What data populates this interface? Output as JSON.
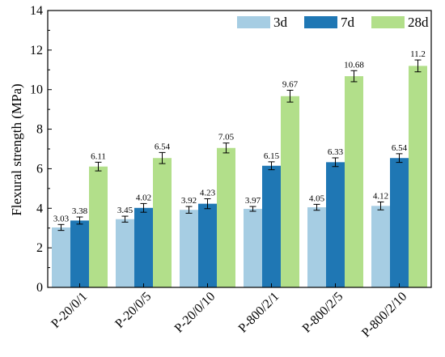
{
  "chart_data": {
    "type": "bar",
    "ylabel": "Flexural strength (MPa)",
    "xlabel": "",
    "ylim": [
      0,
      14
    ],
    "yticks": [
      "0",
      "2",
      "4",
      "6",
      "8",
      "10",
      "12",
      "14"
    ],
    "legend_position": "top-right",
    "categories": [
      "P-20/0/1",
      "P-20/0/5",
      "P-20/0/10",
      "P-800/2/1",
      "P-800/2/5",
      "P-800/2/10"
    ],
    "series": [
      {
        "name": "3d",
        "color": "#a6cde3",
        "values": [
          3.03,
          3.45,
          3.92,
          3.97,
          4.05,
          4.12
        ],
        "errors": [
          0.15,
          0.15,
          0.17,
          0.12,
          0.15,
          0.2
        ],
        "labels": [
          "3.03",
          "3.45",
          "3.92",
          "3.97",
          "4.05",
          "4.12"
        ]
      },
      {
        "name": "7d",
        "color": "#1f77b4",
        "values": [
          3.38,
          4.02,
          4.23,
          6.15,
          6.33,
          6.54
        ],
        "errors": [
          0.18,
          0.22,
          0.25,
          0.2,
          0.22,
          0.22
        ],
        "labels": [
          "3.38",
          "4.02",
          "4.23",
          "6.15",
          "6.33",
          "6.54"
        ]
      },
      {
        "name": "28d",
        "color": "#b2df8a",
        "values": [
          6.11,
          6.54,
          7.05,
          9.67,
          10.68,
          11.2
        ],
        "errors": [
          0.22,
          0.28,
          0.25,
          0.3,
          0.28,
          0.3
        ],
        "labels": [
          "6.11",
          "6.54",
          "7.05",
          "9.67",
          "10.68",
          "11.2"
        ]
      }
    ]
  }
}
